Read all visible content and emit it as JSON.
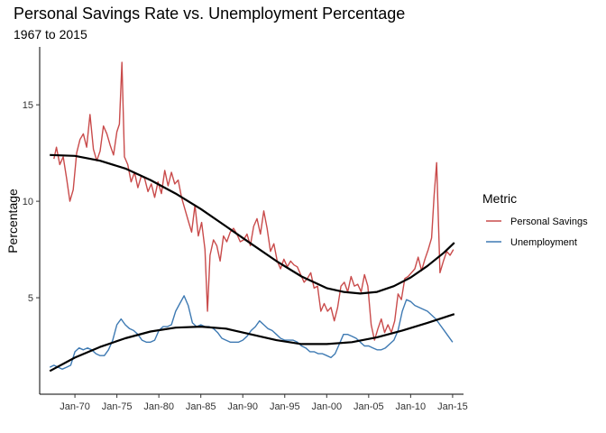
{
  "chart_data": {
    "type": "line",
    "title": "Personal Savings Rate vs. Unemployment Percentage",
    "subtitle": "1967 to 2015",
    "xlabel": "",
    "ylabel": "Percentage",
    "xlim": [
      1965.8,
      2016.3
    ],
    "ylim": [
      0,
      18
    ],
    "x_ticks": [
      {
        "value": 1970,
        "label": "Jan-70"
      },
      {
        "value": 1975,
        "label": "Jan-75"
      },
      {
        "value": 1980,
        "label": "Jan-80"
      },
      {
        "value": 1985,
        "label": "Jan-85"
      },
      {
        "value": 1990,
        "label": "Jan-90"
      },
      {
        "value": 1995,
        "label": "Jan-95"
      },
      {
        "value": 2000,
        "label": "Jan-00"
      },
      {
        "value": 2005,
        "label": "Jan-05"
      },
      {
        "value": 2010,
        "label": "Jan-10"
      },
      {
        "value": 2015,
        "label": "Jan-15"
      }
    ],
    "y_ticks": [
      {
        "value": 5,
        "label": "5"
      },
      {
        "value": 10,
        "label": "10"
      },
      {
        "value": 15,
        "label": "15"
      }
    ],
    "grid": false,
    "legend": {
      "title": "Metric",
      "position": "right"
    },
    "series": [
      {
        "name": "Personal Savings",
        "color": "#C94B4B",
        "x": [
          1967.5,
          1967.8,
          1968.2,
          1968.6,
          1969.0,
          1969.4,
          1969.8,
          1970.2,
          1970.6,
          1971.0,
          1971.4,
          1971.8,
          1972.2,
          1972.6,
          1973.0,
          1973.4,
          1973.8,
          1974.2,
          1974.6,
          1975.0,
          1975.3,
          1975.6,
          1975.9,
          1976.3,
          1976.7,
          1977.1,
          1977.5,
          1977.9,
          1978.3,
          1978.7,
          1979.1,
          1979.5,
          1979.9,
          1980.3,
          1980.7,
          1981.1,
          1981.5,
          1981.9,
          1982.3,
          1982.7,
          1983.1,
          1983.5,
          1983.9,
          1984.3,
          1984.7,
          1985.1,
          1985.5,
          1985.8,
          1986.1,
          1986.5,
          1986.9,
          1987.3,
          1987.7,
          1988.1,
          1988.5,
          1988.9,
          1989.3,
          1989.7,
          1990.1,
          1990.5,
          1990.9,
          1991.3,
          1991.7,
          1992.1,
          1992.5,
          1992.9,
          1993.3,
          1993.7,
          1994.1,
          1994.5,
          1994.9,
          1995.3,
          1995.7,
          1996.1,
          1996.5,
          1996.9,
          1997.3,
          1997.7,
          1998.1,
          1998.5,
          1998.9,
          1999.3,
          1999.7,
          2000.1,
          2000.5,
          2000.9,
          2001.3,
          2001.7,
          2002.1,
          2002.5,
          2002.9,
          2003.3,
          2003.7,
          2004.1,
          2004.5,
          2004.9,
          2005.3,
          2005.7,
          2006.1,
          2006.5,
          2006.9,
          2007.3,
          2007.7,
          2008.1,
          2008.5,
          2008.9,
          2009.3,
          2009.7,
          2010.1,
          2010.5,
          2010.9,
          2011.3,
          2011.7,
          2012.1,
          2012.5,
          2012.8,
          2013.1,
          2013.5,
          2013.9,
          2014.3,
          2014.7,
          2015.1
        ],
        "values": [
          12.2,
          12.8,
          11.9,
          12.3,
          11.2,
          10.0,
          10.6,
          12.5,
          13.2,
          13.5,
          12.8,
          14.5,
          12.7,
          12.1,
          12.6,
          13.9,
          13.5,
          12.9,
          12.4,
          13.6,
          14.0,
          17.2,
          12.3,
          11.9,
          11.0,
          11.5,
          10.7,
          11.3,
          11.2,
          10.5,
          10.9,
          10.2,
          11.0,
          10.4,
          11.6,
          10.8,
          11.5,
          10.9,
          11.1,
          10.2,
          9.6,
          9.0,
          8.4,
          9.8,
          8.2,
          8.9,
          7.5,
          4.3,
          7.2,
          8.0,
          7.7,
          6.9,
          8.2,
          7.9,
          8.4,
          8.6,
          8.3,
          7.9,
          8.0,
          8.3,
          7.7,
          8.7,
          9.1,
          8.3,
          9.5,
          8.6,
          7.4,
          7.8,
          6.9,
          6.5,
          7.0,
          6.6,
          6.9,
          6.7,
          6.6,
          6.2,
          5.8,
          6.0,
          6.3,
          5.5,
          5.6,
          4.3,
          4.7,
          4.3,
          4.5,
          3.8,
          4.5,
          5.6,
          5.8,
          5.3,
          6.1,
          5.6,
          5.7,
          5.3,
          6.2,
          5.6,
          3.6,
          2.8,
          3.4,
          3.9,
          3.2,
          3.6,
          3.2,
          3.8,
          5.2,
          4.9,
          6.0,
          6.1,
          6.3,
          6.5,
          7.1,
          6.4,
          7.0,
          7.5,
          8.1,
          10.3,
          12.0,
          6.3,
          6.9,
          7.4,
          7.2,
          7.5
        ]
      },
      {
        "name": "Unemployment",
        "color": "#3E7AB3",
        "x": [
          1967.0,
          1967.5,
          1968.0,
          1968.5,
          1969.0,
          1969.5,
          1970.0,
          1970.5,
          1971.0,
          1971.5,
          1972.0,
          1972.5,
          1973.0,
          1973.5,
          1974.0,
          1974.5,
          1975.0,
          1975.5,
          1976.0,
          1976.5,
          1977.0,
          1977.5,
          1978.0,
          1978.5,
          1979.0,
          1979.5,
          1980.0,
          1980.5,
          1981.0,
          1981.5,
          1982.0,
          1982.5,
          1983.0,
          1983.5,
          1984.0,
          1984.5,
          1985.0,
          1985.5,
          1986.0,
          1986.5,
          1987.0,
          1987.5,
          1988.0,
          1988.5,
          1989.0,
          1989.5,
          1990.0,
          1990.5,
          1991.0,
          1991.5,
          1992.0,
          1992.5,
          1993.0,
          1993.5,
          1994.0,
          1994.5,
          1995.0,
          1995.5,
          1996.0,
          1996.5,
          1997.0,
          1997.5,
          1998.0,
          1998.5,
          1999.0,
          1999.5,
          2000.0,
          2000.5,
          2001.0,
          2001.5,
          2002.0,
          2002.5,
          2003.0,
          2003.5,
          2004.0,
          2004.5,
          2005.0,
          2005.5,
          2006.0,
          2006.5,
          2007.0,
          2007.5,
          2008.0,
          2008.5,
          2009.0,
          2009.5,
          2010.0,
          2010.5,
          2011.0,
          2011.5,
          2012.0,
          2012.5,
          2013.0,
          2013.5,
          2014.0,
          2014.5,
          2015.0
        ],
        "values": [
          1.4,
          1.5,
          1.4,
          1.3,
          1.4,
          1.5,
          2.2,
          2.4,
          2.3,
          2.4,
          2.3,
          2.1,
          2.0,
          2.0,
          2.3,
          2.8,
          3.6,
          3.9,
          3.6,
          3.4,
          3.3,
          3.1,
          2.8,
          2.7,
          2.7,
          2.8,
          3.3,
          3.5,
          3.5,
          3.6,
          4.3,
          4.7,
          5.1,
          4.6,
          3.7,
          3.5,
          3.6,
          3.5,
          3.5,
          3.4,
          3.2,
          2.9,
          2.8,
          2.7,
          2.7,
          2.7,
          2.8,
          3.0,
          3.3,
          3.5,
          3.8,
          3.6,
          3.4,
          3.3,
          3.1,
          2.9,
          2.8,
          2.8,
          2.8,
          2.7,
          2.5,
          2.4,
          2.2,
          2.2,
          2.1,
          2.1,
          2.0,
          1.9,
          2.1,
          2.6,
          3.1,
          3.1,
          3.0,
          2.9,
          2.7,
          2.5,
          2.5,
          2.4,
          2.3,
          2.3,
          2.4,
          2.6,
          2.8,
          3.3,
          4.3,
          4.9,
          4.8,
          4.6,
          4.5,
          4.4,
          4.3,
          4.1,
          3.9,
          3.6,
          3.3,
          3.0,
          2.7
        ]
      }
    ],
    "trend_lines": [
      {
        "color": "#000000",
        "x": [
          1967.0,
          1970,
          1973,
          1976,
          1979,
          1982,
          1985,
          1988,
          1991,
          1994,
          1997,
          2000,
          2002,
          2004,
          2006,
          2008,
          2010,
          2012,
          2014,
          2015.2
        ],
        "values": [
          12.4,
          12.35,
          12.1,
          11.7,
          11.1,
          10.4,
          9.6,
          8.7,
          7.8,
          6.9,
          6.1,
          5.5,
          5.3,
          5.22,
          5.3,
          5.6,
          6.05,
          6.65,
          7.35,
          7.85
        ]
      },
      {
        "color": "#000000",
        "x": [
          1967.0,
          1970,
          1973,
          1976,
          1979,
          1982,
          1985,
          1988,
          1991,
          1994,
          1997,
          2000,
          2003,
          2006,
          2009,
          2012,
          2015.2
        ],
        "values": [
          1.2,
          1.9,
          2.45,
          2.9,
          3.25,
          3.45,
          3.5,
          3.4,
          3.1,
          2.8,
          2.6,
          2.6,
          2.7,
          2.95,
          3.3,
          3.7,
          4.15
        ]
      }
    ]
  }
}
